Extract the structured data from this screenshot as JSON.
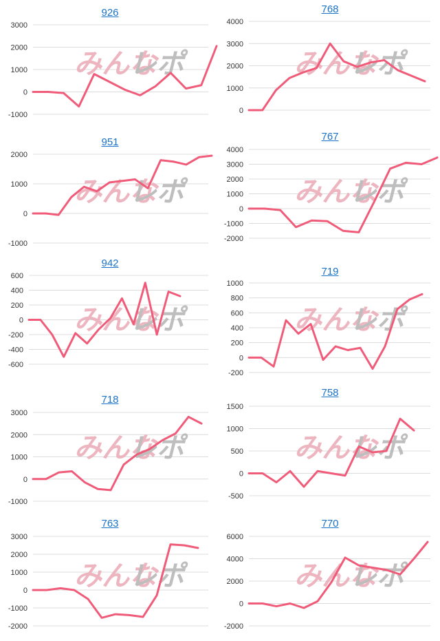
{
  "colors": {
    "line": "#ef5b78",
    "grid": "#dcdcdc",
    "title": "#1a73c8",
    "watermark_left": "#ecaeb9",
    "watermark_right": "#b7b7b7"
  },
  "watermark": {
    "left": "みんな",
    "right": "レポ"
  },
  "chart_data": [
    {
      "type": "line",
      "title": "926",
      "ylim": [
        -1000,
        3000
      ],
      "yticks": [
        3000,
        2000,
        1000,
        0,
        -1000
      ],
      "values": [
        0,
        0,
        -50,
        -650,
        800,
        450,
        100,
        -150,
        250,
        850,
        150,
        300,
        2050
      ]
    },
    {
      "type": "line",
      "title": "768",
      "ylim": [
        0,
        4000
      ],
      "yticks": [
        4000,
        3000,
        2000,
        1000,
        0
      ],
      "values": [
        0,
        0,
        900,
        1450,
        1700,
        1900,
        3000,
        2200,
        1950,
        2150,
        2250,
        1800,
        1550,
        1300
      ]
    },
    {
      "type": "line",
      "title": "951",
      "ylim": [
        -1000,
        2000
      ],
      "yticks": [
        2000,
        1000,
        0,
        -1000
      ],
      "values": [
        0,
        0,
        -50,
        550,
        900,
        750,
        1050,
        1100,
        1150,
        850,
        1800,
        1750,
        1650,
        1900,
        1950
      ]
    },
    {
      "type": "line",
      "title": "767",
      "ylim": [
        -2000,
        4000
      ],
      "yticks": [
        4000,
        3000,
        2000,
        1000,
        0,
        -1000,
        -2000
      ],
      "values": [
        0,
        0,
        -100,
        -1250,
        -800,
        -850,
        -1500,
        -1600,
        500,
        2700,
        3100,
        3000,
        3450
      ]
    },
    {
      "type": "line",
      "title": "942",
      "ylim": [
        -600,
        600
      ],
      "yticks": [
        600,
        400,
        200,
        0,
        -200,
        -400,
        -600
      ],
      "values": [
        0,
        0,
        -200,
        -500,
        -180,
        -320,
        -130,
        20,
        290,
        -60,
        500,
        -200,
        380,
        320
      ]
    },
    {
      "type": "line",
      "title": "719",
      "ylim": [
        -200,
        1000
      ],
      "yticks": [
        1000,
        800,
        600,
        400,
        200,
        0,
        -200
      ],
      "values": [
        0,
        0,
        -120,
        500,
        320,
        450,
        -30,
        150,
        100,
        130,
        -150,
        150,
        650,
        780,
        850
      ]
    },
    {
      "type": "line",
      "title": "718",
      "ylim": [
        -1000,
        3000
      ],
      "yticks": [
        3000,
        2000,
        1000,
        0,
        -1000
      ],
      "values": [
        0,
        0,
        300,
        350,
        -150,
        -450,
        -500,
        650,
        1100,
        1350,
        1750,
        2050,
        2800,
        2500
      ]
    },
    {
      "type": "line",
      "title": "758",
      "ylim": [
        -500,
        1500
      ],
      "yticks": [
        1500,
        1000,
        500,
        0,
        -500
      ],
      "values": [
        0,
        0,
        -200,
        50,
        -300,
        50,
        0,
        -50,
        600,
        470,
        500,
        1220,
        960
      ]
    },
    {
      "type": "line",
      "title": "763",
      "ylim": [
        -2000,
        3000
      ],
      "yticks": [
        3000,
        2000,
        1000,
        0,
        -1000,
        -2000
      ],
      "values": [
        0,
        0,
        100,
        0,
        -500,
        -1550,
        -1350,
        -1400,
        -1500,
        -300,
        2550,
        2500,
        2350
      ]
    },
    {
      "type": "line",
      "title": "770",
      "ylim": [
        -2000,
        6000
      ],
      "yticks": [
        6000,
        4000,
        2000,
        0,
        -2000
      ],
      "values": [
        0,
        0,
        -250,
        0,
        -400,
        200,
        1900,
        4100,
        3400,
        3200,
        3000,
        2600,
        4000,
        5500
      ]
    }
  ]
}
